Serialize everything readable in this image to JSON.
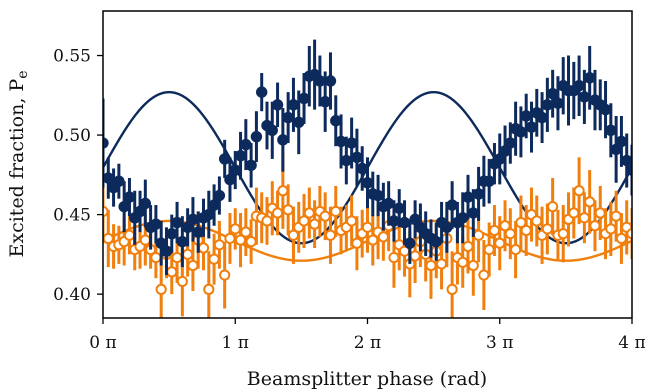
{
  "chart_data": {
    "type": "scatter",
    "title": "",
    "xlabel": "Beamsplitter phase (rad)",
    "ylabel": "Excited fraction, P",
    "ylabel_subscript": "e",
    "xlim": [
      0,
      4
    ],
    "ylim": [
      0.385,
      0.578
    ],
    "x_unit": "π",
    "x_ticks": [
      0,
      1,
      2,
      3,
      4
    ],
    "x_tick_labels": [
      "0 π",
      "1 π",
      "2 π",
      "3 π",
      "4 π"
    ],
    "y_ticks": [
      0.4,
      0.45,
      0.5,
      0.55
    ],
    "y_tick_labels": [
      "0.40",
      "0.45",
      "0.50",
      "0.55"
    ],
    "grid": false,
    "legend": "none",
    "series": [
      {
        "marker": "filled-circle",
        "color": "#0d2a5c",
        "x": [
          0.0,
          0.04,
          0.08,
          0.12,
          0.16,
          0.2,
          0.24,
          0.28,
          0.32,
          0.36,
          0.4,
          0.44,
          0.48,
          0.52,
          0.56,
          0.6,
          0.64,
          0.68,
          0.72,
          0.76,
          0.8,
          0.84,
          0.88,
          0.92,
          0.96,
          1.0,
          1.04,
          1.08,
          1.12,
          1.16,
          1.2,
          1.24,
          1.28,
          1.32,
          1.36,
          1.4,
          1.44,
          1.48,
          1.52,
          1.56,
          1.6,
          1.64,
          1.68,
          1.72,
          1.76,
          1.8,
          1.84,
          1.88,
          1.92,
          1.96,
          2.0,
          2.04,
          2.08,
          2.12,
          2.16,
          2.2,
          2.24,
          2.28,
          2.32,
          2.36,
          2.4,
          2.44,
          2.48,
          2.52,
          2.56,
          2.6,
          2.64,
          2.68,
          2.72,
          2.76,
          2.8,
          2.84,
          2.88,
          2.92,
          2.96,
          3.0,
          3.04,
          3.08,
          3.12,
          3.16,
          3.2,
          3.24,
          3.28,
          3.32,
          3.36,
          3.4,
          3.44,
          3.48,
          3.52,
          3.56,
          3.6,
          3.64,
          3.68,
          3.72,
          3.76,
          3.8,
          3.84,
          3.88,
          3.92,
          3.96,
          4.0
        ],
        "y": [
          0.495,
          0.473,
          0.467,
          0.471,
          0.455,
          0.461,
          0.448,
          0.452,
          0.457,
          0.442,
          0.444,
          0.432,
          0.427,
          0.438,
          0.445,
          0.433,
          0.442,
          0.447,
          0.439,
          0.448,
          0.45,
          0.456,
          0.462,
          0.485,
          0.472,
          0.478,
          0.487,
          0.494,
          0.481,
          0.499,
          0.527,
          0.506,
          0.503,
          0.519,
          0.497,
          0.511,
          0.519,
          0.508,
          0.523,
          0.537,
          0.538,
          0.534,
          0.521,
          0.534,
          0.509,
          0.496,
          0.484,
          0.495,
          0.486,
          0.479,
          0.47,
          0.463,
          0.462,
          0.455,
          0.457,
          0.446,
          0.454,
          0.445,
          0.432,
          0.447,
          0.442,
          0.438,
          0.435,
          0.433,
          0.445,
          0.442,
          0.456,
          0.445,
          0.448,
          0.461,
          0.451,
          0.463,
          0.471,
          0.471,
          0.482,
          0.485,
          0.49,
          0.495,
          0.504,
          0.502,
          0.512,
          0.505,
          0.514,
          0.511,
          0.519,
          0.526,
          0.52,
          0.531,
          0.528,
          0.528,
          0.531,
          0.524,
          0.536,
          0.522,
          0.519,
          0.516,
          0.503,
          0.491,
          0.496,
          0.484,
          0.478
        ],
        "err": [
          0.028,
          0.013,
          0.012,
          0.011,
          0.016,
          0.012,
          0.017,
          0.013,
          0.015,
          0.014,
          0.012,
          0.014,
          0.015,
          0.012,
          0.013,
          0.016,
          0.012,
          0.014,
          0.013,
          0.012,
          0.015,
          0.013,
          0.012,
          0.012,
          0.014,
          0.012,
          0.015,
          0.016,
          0.014,
          0.016,
          0.012,
          0.015,
          0.018,
          0.014,
          0.02,
          0.016,
          0.017,
          0.02,
          0.016,
          0.019,
          0.022,
          0.016,
          0.019,
          0.018,
          0.016,
          0.017,
          0.015,
          0.016,
          0.018,
          0.014,
          0.016,
          0.014,
          0.013,
          0.015,
          0.014,
          0.013,
          0.012,
          0.014,
          0.013,
          0.012,
          0.015,
          0.014,
          0.012,
          0.012,
          0.013,
          0.016,
          0.015,
          0.013,
          0.016,
          0.014,
          0.015,
          0.017,
          0.016,
          0.014,
          0.013,
          0.016,
          0.016,
          0.013,
          0.017,
          0.016,
          0.014,
          0.016,
          0.015,
          0.016,
          0.017,
          0.015,
          0.017,
          0.018,
          0.022,
          0.018,
          0.019,
          0.017,
          0.02,
          0.019,
          0.016,
          0.018,
          0.017,
          0.021,
          0.016,
          0.017,
          0.016
        ]
      },
      {
        "marker": "open-circle",
        "color": "#f07f0e",
        "x": [
          0.0,
          0.04,
          0.08,
          0.12,
          0.16,
          0.2,
          0.24,
          0.28,
          0.32,
          0.36,
          0.4,
          0.44,
          0.48,
          0.52,
          0.56,
          0.6,
          0.64,
          0.68,
          0.72,
          0.76,
          0.8,
          0.84,
          0.88,
          0.92,
          0.96,
          1.0,
          1.04,
          1.08,
          1.12,
          1.16,
          1.2,
          1.24,
          1.28,
          1.32,
          1.36,
          1.4,
          1.44,
          1.48,
          1.52,
          1.56,
          1.6,
          1.64,
          1.68,
          1.72,
          1.76,
          1.8,
          1.84,
          1.88,
          1.92,
          1.96,
          2.0,
          2.04,
          2.08,
          2.12,
          2.16,
          2.2,
          2.24,
          2.28,
          2.32,
          2.36,
          2.4,
          2.44,
          2.48,
          2.52,
          2.56,
          2.6,
          2.64,
          2.68,
          2.72,
          2.76,
          2.8,
          2.84,
          2.88,
          2.92,
          2.96,
          3.0,
          3.04,
          3.08,
          3.12,
          3.16,
          3.2,
          3.24,
          3.28,
          3.32,
          3.36,
          3.4,
          3.44,
          3.48,
          3.52,
          3.56,
          3.6,
          3.64,
          3.68,
          3.72,
          3.76,
          3.8,
          3.84,
          3.88,
          3.92,
          3.96,
          4.0
        ],
        "y": [
          0.452,
          0.435,
          0.43,
          0.431,
          0.433,
          0.437,
          0.428,
          0.43,
          0.434,
          0.428,
          0.423,
          0.403,
          0.425,
          0.414,
          0.423,
          0.408,
          0.425,
          0.418,
          0.434,
          0.429,
          0.403,
          0.422,
          0.431,
          0.412,
          0.435,
          0.441,
          0.434,
          0.439,
          0.433,
          0.449,
          0.448,
          0.446,
          0.454,
          0.451,
          0.465,
          0.453,
          0.437,
          0.442,
          0.446,
          0.451,
          0.444,
          0.452,
          0.449,
          0.437,
          0.452,
          0.44,
          0.442,
          0.446,
          0.432,
          0.438,
          0.442,
          0.434,
          0.439,
          0.436,
          0.443,
          0.423,
          0.431,
          0.427,
          0.419,
          0.424,
          0.433,
          0.425,
          0.418,
          0.427,
          0.419,
          0.435,
          0.403,
          0.423,
          0.42,
          0.43,
          0.418,
          0.437,
          0.412,
          0.428,
          0.44,
          0.432,
          0.443,
          0.438,
          0.428,
          0.445,
          0.44,
          0.45,
          0.446,
          0.437,
          0.441,
          0.455,
          0.437,
          0.438,
          0.447,
          0.451,
          0.465,
          0.448,
          0.458,
          0.443,
          0.451,
          0.438,
          0.441,
          0.449,
          0.435,
          0.442,
          0.438
        ],
        "err": [
          0.02,
          0.018,
          0.014,
          0.012,
          0.015,
          0.012,
          0.013,
          0.014,
          0.016,
          0.012,
          0.013,
          0.021,
          0.015,
          0.014,
          0.016,
          0.022,
          0.014,
          0.016,
          0.018,
          0.014,
          0.024,
          0.016,
          0.015,
          0.021,
          0.016,
          0.013,
          0.017,
          0.015,
          0.014,
          0.018,
          0.016,
          0.015,
          0.017,
          0.014,
          0.024,
          0.016,
          0.018,
          0.016,
          0.017,
          0.016,
          0.015,
          0.016,
          0.015,
          0.018,
          0.016,
          0.015,
          0.014,
          0.016,
          0.017,
          0.015,
          0.016,
          0.016,
          0.017,
          0.015,
          0.016,
          0.019,
          0.016,
          0.016,
          0.021,
          0.017,
          0.016,
          0.017,
          0.021,
          0.017,
          0.016,
          0.018,
          0.024,
          0.017,
          0.016,
          0.017,
          0.019,
          0.017,
          0.022,
          0.017,
          0.016,
          0.017,
          0.016,
          0.016,
          0.018,
          0.017,
          0.016,
          0.017,
          0.016,
          0.018,
          0.016,
          0.018,
          0.016,
          0.018,
          0.017,
          0.016,
          0.021,
          0.016,
          0.02,
          0.016,
          0.017,
          0.016,
          0.017,
          0.016,
          0.016,
          0.017,
          0.016
        ]
      }
    ],
    "fits": [
      {
        "color": "#0d2a5c",
        "model": "offset - amplitude*cos(x_pi*pi - phase)",
        "offset": 0.4795,
        "amplitude": 0.0475,
        "phase_pi": 1.5,
        "x_range": [
          0,
          4
        ]
      },
      {
        "color": "#f07f0e",
        "model": "offset - amplitude*cos(x_pi*pi - phase)",
        "offset": 0.4335,
        "amplitude": 0.0125,
        "phase_pi": 1.5,
        "x_range": [
          0,
          4
        ]
      }
    ]
  }
}
